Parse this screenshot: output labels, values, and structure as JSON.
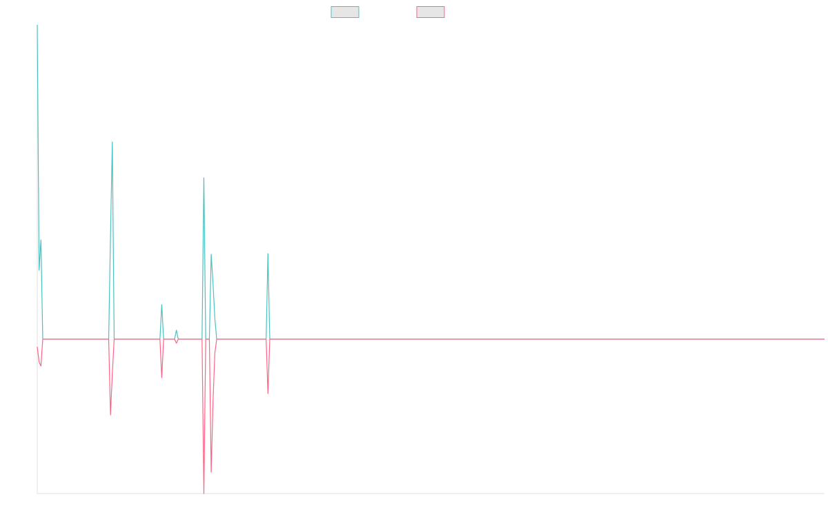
{
  "chart_data": {
    "type": "line",
    "x": [
      0,
      1,
      2,
      3,
      39,
      40,
      41,
      42,
      67,
      68,
      69,
      75,
      76,
      77,
      90,
      91,
      92,
      94,
      95,
      96,
      97,
      98,
      125,
      126,
      127,
      430
    ],
    "series": [
      {
        "color": "#4bc0c0",
        "values": [
          456,
          100,
          144,
          0,
          0,
          150,
          286,
          0,
          0,
          50,
          0,
          0,
          13,
          0,
          0,
          234,
          0,
          0,
          123,
          80,
          30,
          0,
          0,
          124,
          0,
          0
        ]
      },
      {
        "color": "#ff6384",
        "values": [
          -11,
          -33,
          -39,
          0,
          0,
          -110,
          -50,
          0,
          0,
          -56,
          0,
          0,
          -6,
          0,
          0,
          -224,
          0,
          0,
          -193,
          -90,
          -20,
          0,
          0,
          -79,
          0,
          0
        ]
      }
    ],
    "xlim": [
      0,
      430
    ],
    "ylim": [
      -224,
      456
    ]
  }
}
